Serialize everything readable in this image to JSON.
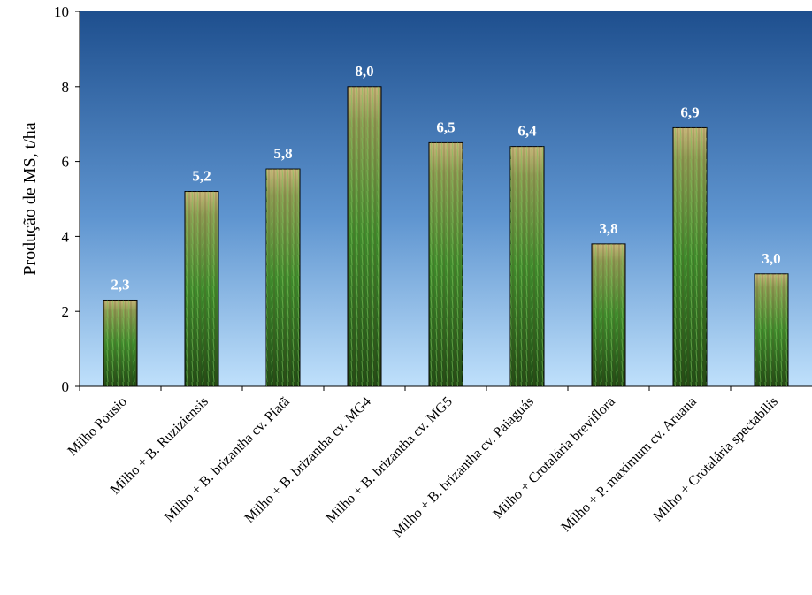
{
  "chart_data": {
    "type": "bar",
    "y_label": "Produção de MS, t/ha",
    "categories": [
      "Milho Pousio",
      "Milho + B. Ruziziensis",
      "Milho + B. brizantha cv. Piatã",
      "Milho + B. brizantha cv. MG4",
      "Milho + B. brizantha cv. MG5",
      "Milho + B. brizantha cv. Paiaguás",
      "Milho + Crotalária breviflora",
      "Milho + P. maximum cv. Aruana",
      "Milho + Crotalária spectabilis"
    ],
    "values": [
      2.3,
      5.2,
      5.8,
      8.0,
      6.5,
      6.4,
      3.8,
      6.9,
      3.0
    ],
    "value_labels": [
      "2,3",
      "5,2",
      "5,8",
      "8,0",
      "6,5",
      "6,4",
      "3,8",
      "6,9",
      "3,0"
    ],
    "ylim": [
      0,
      10
    ],
    "yticks": [
      0,
      2,
      4,
      6,
      8,
      10
    ]
  }
}
